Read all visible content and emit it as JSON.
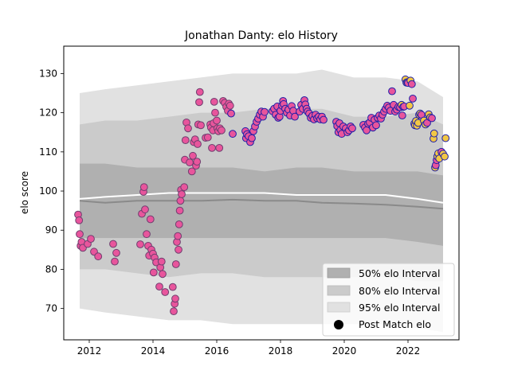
{
  "chart_data": {
    "type": "scatter",
    "title": "Jonathan Danty: elo History",
    "xlabel": "",
    "ylabel": "elo score",
    "xlim": [
      2011.2,
      2023.6
    ],
    "ylim": [
      62,
      137
    ],
    "x_ticks": [
      2012,
      2014,
      2016,
      2018,
      2020,
      2022
    ],
    "y_ticks": [
      70,
      80,
      90,
      100,
      110,
      120,
      130
    ],
    "grid": false,
    "legend_position": "bottom-right",
    "colors": {
      "band95": "#e1e1e1",
      "band80": "#cbcbcb",
      "band50": "#b0b0b0",
      "mean_line": "#8a8a8a",
      "median_line": "#ffffff",
      "point_face": "#e8559c",
      "point_edge_early": "#6f3f6f",
      "point_edge_late": "#1f1fa8",
      "point_face_recent": "#f2c744"
    },
    "legend": [
      {
        "label": "50% elo Interval",
        "kind": "band50"
      },
      {
        "label": "80% elo Interval",
        "kind": "band80"
      },
      {
        "label": "95% elo Interval",
        "kind": "band95"
      },
      {
        "label": "Post Match elo",
        "kind": "marker"
      }
    ],
    "band_x": [
      2011.7,
      2012.5,
      2013.5,
      2014.5,
      2015.5,
      2016.5,
      2017.5,
      2018.5,
      2019.3,
      2020.3,
      2021.3,
      2022.3,
      2023.1
    ],
    "bands": {
      "p95_upper": [
        125,
        126,
        127,
        128,
        129,
        130,
        130,
        130,
        131,
        129,
        129,
        128,
        124
      ],
      "p80_upper": [
        117,
        118,
        118,
        119,
        120,
        120,
        121,
        121,
        121,
        119,
        119,
        120,
        117
      ],
      "p50_upper": [
        107,
        107,
        106,
        106,
        106,
        106,
        105,
        106,
        106,
        105,
        105,
        105,
        104
      ],
      "median": [
        98,
        98.5,
        99,
        99.5,
        99.5,
        99.5,
        99.5,
        99,
        99,
        99,
        99,
        98,
        97
      ],
      "mean": [
        97.5,
        97,
        97.5,
        97.5,
        97.5,
        97.8,
        97.5,
        97.5,
        97,
        96.8,
        96.5,
        96,
        95.5
      ],
      "p50_lower": [
        88,
        88,
        88,
        88,
        88,
        88,
        88,
        88,
        88,
        88,
        88,
        87,
        86
      ],
      "p80_lower": [
        80,
        80,
        79,
        78,
        79,
        79,
        78,
        78,
        78,
        78,
        78,
        77,
        77
      ],
      "p95_lower": [
        70,
        69,
        68,
        67,
        67,
        66,
        66,
        66,
        66,
        66,
        66,
        65,
        64
      ]
    },
    "series": [
      {
        "name": "Post Match elo",
        "points": [
          [
            2011.65,
            94
          ],
          [
            2011.68,
            92.5
          ],
          [
            2011.7,
            89
          ],
          [
            2011.73,
            86
          ],
          [
            2011.76,
            87
          ],
          [
            2011.8,
            85.5
          ],
          [
            2011.95,
            86.5
          ],
          [
            2012.05,
            87.8
          ],
          [
            2012.15,
            84.5
          ],
          [
            2012.28,
            83.3
          ],
          [
            2012.75,
            86.5
          ],
          [
            2012.8,
            82
          ],
          [
            2012.85,
            84.2
          ],
          [
            2013.6,
            86.4
          ],
          [
            2013.65,
            94.2
          ],
          [
            2013.7,
            99.8
          ],
          [
            2013.72,
            101
          ],
          [
            2013.75,
            95.3
          ],
          [
            2013.8,
            89
          ],
          [
            2013.85,
            86
          ],
          [
            2013.88,
            83.5
          ],
          [
            2013.92,
            92.8
          ],
          [
            2013.95,
            85
          ],
          [
            2014.0,
            84
          ],
          [
            2014.02,
            79.2
          ],
          [
            2014.05,
            83
          ],
          [
            2014.1,
            81.8
          ],
          [
            2014.2,
            75.6
          ],
          [
            2014.23,
            80.5
          ],
          [
            2014.27,
            82
          ],
          [
            2014.3,
            78.8
          ],
          [
            2014.38,
            74.2
          ],
          [
            2014.62,
            75.5
          ],
          [
            2014.65,
            69.3
          ],
          [
            2014.68,
            71.2
          ],
          [
            2014.7,
            72.5
          ],
          [
            2014.72,
            81.3
          ],
          [
            2014.75,
            87
          ],
          [
            2014.78,
            88.5
          ],
          [
            2014.8,
            85
          ],
          [
            2014.82,
            91.5
          ],
          [
            2014.84,
            95
          ],
          [
            2014.86,
            97.5
          ],
          [
            2014.88,
            100.3
          ],
          [
            2014.9,
            99.2
          ],
          [
            2014.98,
            101
          ],
          [
            2015.0,
            108
          ],
          [
            2015.02,
            113
          ],
          [
            2015.05,
            117.5
          ],
          [
            2015.1,
            116
          ],
          [
            2015.15,
            107.3
          ],
          [
            2015.22,
            105
          ],
          [
            2015.25,
            109
          ],
          [
            2015.28,
            112.5
          ],
          [
            2015.32,
            113.2
          ],
          [
            2015.35,
            106.5
          ],
          [
            2015.38,
            107.5
          ],
          [
            2015.4,
            112
          ],
          [
            2015.42,
            117
          ],
          [
            2015.45,
            122.7
          ],
          [
            2015.47,
            125.3
          ],
          [
            2015.5,
            116.8
          ],
          [
            2015.65,
            113.6
          ],
          [
            2015.72,
            113.7
          ],
          [
            2015.8,
            117
          ],
          [
            2015.82,
            116.2
          ],
          [
            2015.85,
            111
          ],
          [
            2015.88,
            115.5
          ],
          [
            2015.9,
            117.3
          ],
          [
            2015.92,
            122.8
          ],
          [
            2015.95,
            120
          ],
          [
            2016.0,
            118
          ],
          [
            2016.02,
            116
          ],
          [
            2016.05,
            115.3
          ],
          [
            2016.08,
            111
          ],
          [
            2016.1,
            116
          ],
          [
            2016.15,
            115.5
          ],
          [
            2016.2,
            123
          ],
          [
            2016.25,
            122.5
          ],
          [
            2016.3,
            121.5
          ],
          [
            2016.35,
            120.5
          ],
          [
            2016.38,
            122.3
          ],
          [
            2016.42,
            121.8
          ],
          [
            2016.45,
            119.8
          ],
          [
            2016.5,
            114.6
          ],
          [
            2016.9,
            115.3
          ],
          [
            2016.92,
            113.5
          ],
          [
            2016.95,
            114.5
          ],
          [
            2017.0,
            114
          ],
          [
            2017.05,
            112.5
          ],
          [
            2017.1,
            113.5
          ],
          [
            2017.15,
            115.3
          ],
          [
            2017.2,
            116.5
          ],
          [
            2017.25,
            117.7
          ],
          [
            2017.3,
            118.5
          ],
          [
            2017.35,
            119.5
          ],
          [
            2017.4,
            120.3
          ],
          [
            2017.45,
            119
          ],
          [
            2017.5,
            120.2
          ],
          [
            2017.75,
            120.4
          ],
          [
            2017.8,
            121
          ],
          [
            2017.85,
            119.5
          ],
          [
            2017.9,
            121.6
          ],
          [
            2017.93,
            118.7
          ],
          [
            2017.97,
            119
          ],
          [
            2018.0,
            120.5
          ],
          [
            2018.05,
            121.8
          ],
          [
            2018.08,
            123
          ],
          [
            2018.1,
            122.2
          ],
          [
            2018.15,
            121
          ],
          [
            2018.2,
            120
          ],
          [
            2018.25,
            120.8
          ],
          [
            2018.3,
            119.3
          ],
          [
            2018.35,
            121.7
          ],
          [
            2018.4,
            120.5
          ],
          [
            2018.45,
            119
          ],
          [
            2018.6,
            120.3
          ],
          [
            2018.65,
            122
          ],
          [
            2018.7,
            121
          ],
          [
            2018.75,
            123.2
          ],
          [
            2018.78,
            122.1
          ],
          [
            2018.82,
            121
          ],
          [
            2018.85,
            120.3
          ],
          [
            2018.9,
            119.8
          ],
          [
            2018.95,
            118.7
          ],
          [
            2019.0,
            119.2
          ],
          [
            2019.05,
            118.3
          ],
          [
            2019.1,
            119.5
          ],
          [
            2019.15,
            118.6
          ],
          [
            2019.2,
            119
          ],
          [
            2019.25,
            118.3
          ],
          [
            2019.3,
            119
          ],
          [
            2019.35,
            118.2
          ],
          [
            2019.75,
            117.7
          ],
          [
            2019.78,
            116.6
          ],
          [
            2019.82,
            115
          ],
          [
            2019.85,
            117.3
          ],
          [
            2019.88,
            115.6
          ],
          [
            2019.92,
            114.6
          ],
          [
            2019.97,
            116.5
          ],
          [
            2020.05,
            116
          ],
          [
            2020.1,
            115
          ],
          [
            2020.15,
            115.5
          ],
          [
            2020.2,
            116.5
          ],
          [
            2020.25,
            116
          ],
          [
            2020.6,
            116.9
          ],
          [
            2020.65,
            116.2
          ],
          [
            2020.7,
            115.5
          ],
          [
            2020.75,
            117.2
          ],
          [
            2020.8,
            117.5
          ],
          [
            2020.85,
            118.7
          ],
          [
            2020.9,
            116.2
          ],
          [
            2020.95,
            118.2
          ],
          [
            2021.0,
            116.8
          ],
          [
            2021.05,
            118.7
          ],
          [
            2021.1,
            119.3
          ],
          [
            2021.15,
            118.5
          ],
          [
            2021.2,
            119.5
          ],
          [
            2021.25,
            120.3
          ],
          [
            2021.3,
            121
          ],
          [
            2021.35,
            121.8
          ],
          [
            2021.4,
            121.3
          ],
          [
            2021.45,
            120.5
          ],
          [
            2021.5,
            125.5
          ],
          [
            2021.55,
            122
          ],
          [
            2021.6,
            120.3
          ],
          [
            2021.65,
            120.8
          ],
          [
            2021.7,
            121.5
          ],
          [
            2021.75,
            121.4
          ],
          [
            2021.8,
            122
          ],
          [
            2021.82,
            119.3
          ],
          [
            2021.85,
            121.5
          ],
          [
            2021.88,
            121.6
          ],
          [
            2021.92,
            128.5
          ],
          [
            2021.95,
            127.7
          ],
          [
            2021.98,
            127.8
          ],
          [
            2022.0,
            127.6
          ],
          [
            2022.05,
            121.8
          ],
          [
            2022.08,
            128.2
          ],
          [
            2022.12,
            127.3
          ],
          [
            2022.15,
            123.6
          ],
          [
            2022.2,
            117.2
          ],
          [
            2022.22,
            116.8
          ],
          [
            2022.25,
            117.9
          ],
          [
            2022.28,
            116.7
          ],
          [
            2022.32,
            117.4
          ],
          [
            2022.35,
            119.5
          ],
          [
            2022.38,
            119.8
          ],
          [
            2022.42,
            119.5
          ],
          [
            2022.5,
            118
          ],
          [
            2022.55,
            117
          ],
          [
            2022.6,
            117.4
          ],
          [
            2022.65,
            119.6
          ],
          [
            2022.7,
            118.8
          ],
          [
            2022.75,
            118.6
          ],
          [
            2022.8,
            113.4
          ],
          [
            2022.82,
            114.7
          ],
          [
            2022.85,
            106
          ],
          [
            2022.87,
            106.6
          ],
          [
            2022.9,
            107.9
          ],
          [
            2022.92,
            108.8
          ],
          [
            2022.95,
            109.6
          ],
          [
            2022.98,
            108.3
          ],
          [
            2023.05,
            110
          ],
          [
            2023.1,
            109.5
          ],
          [
            2023.15,
            108.8
          ],
          [
            2023.18,
            113.5
          ]
        ]
      }
    ]
  }
}
